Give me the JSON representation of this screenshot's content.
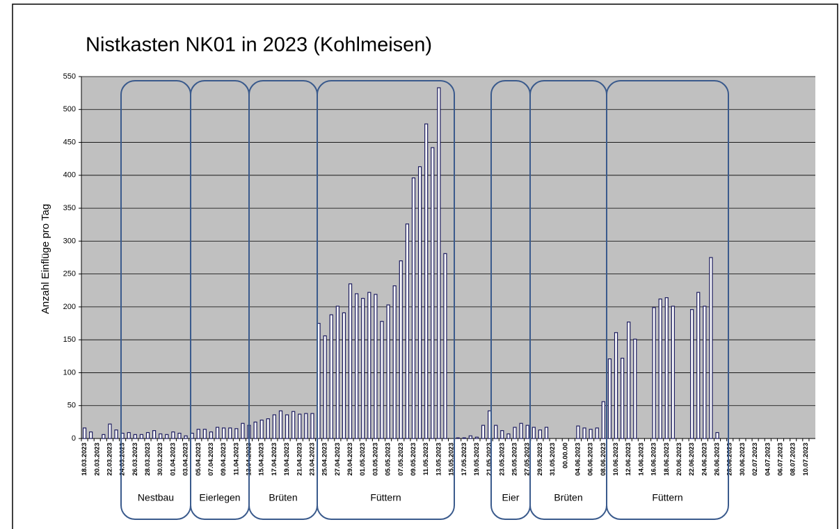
{
  "chart_data": {
    "type": "bar",
    "title": "Nistkasten NK01 in  2023 (Kohlmeisen)",
    "y_label": "Anzahl Einflüge pro Tag",
    "annotations": [
      "Nestbau",
      "Eierlegen",
      "Brüten",
      "Füttern",
      "Eier",
      "Brüten",
      "Füttern"
    ],
    "categories": [
      "18.03.2023",
      null,
      "20.03.2023",
      null,
      "22.03.2023",
      null,
      "24.03.2023",
      null,
      "26.03.2023",
      null,
      "28.03.2023",
      null,
      "30.03.2023",
      null,
      "01.04.2023",
      null,
      "03.04.2023",
      null,
      "05.04.2023",
      null,
      "07.04.2023",
      null,
      "09.04.2023",
      null,
      "11.04.2023",
      null,
      "13.04.2023",
      null,
      "15.04.2023",
      null,
      "17.04.2023",
      null,
      "19.04.2023",
      null,
      "21.04.2023",
      null,
      "23.04.2023",
      null,
      "25.04.2023",
      null,
      "27.04.2023",
      null,
      "29.04.2023",
      null,
      "01.05.2023",
      null,
      "03.05.2023",
      null,
      "05.05.2023",
      null,
      "07.05.2023",
      null,
      "09.05.2023",
      null,
      "11.05.2023",
      null,
      "13.05.2023",
      null,
      "15.05.2023",
      null,
      "17.05.2023",
      null,
      "19.05.2023",
      null,
      "21.05.2023",
      null,
      "23.05.2023",
      null,
      "25.05.2023",
      null,
      "27.05.2023",
      null,
      "29.05.2023",
      null,
      "31.05.2023",
      null,
      "00.00.00",
      null,
      "04.06.2023",
      null,
      "06.06.2023",
      null,
      "08.06.2023",
      null,
      "10.06.2023",
      null,
      "12.06.2023",
      null,
      "14.06.2023",
      null,
      "16.06.2023",
      null,
      "18.06.2023",
      null,
      "20.06.2023",
      null,
      "22.06.2023",
      null,
      "24.06.2023",
      null,
      "26.06.2023",
      null,
      "28.06.2023",
      null,
      "30.06.2023",
      null,
      "02.07.2023",
      null,
      "04.07.2023",
      null,
      "06.07.2023",
      null,
      "08.07.2023",
      null,
      "10.07.2023",
      null
    ],
    "values": [
      16,
      10,
      0,
      6,
      22,
      13,
      8,
      9,
      6,
      6,
      9,
      12,
      7,
      6,
      10,
      8,
      4,
      8,
      14,
      14,
      10,
      17,
      16,
      16,
      15,
      23,
      20,
      25,
      28,
      30,
      36,
      42,
      36,
      41,
      37,
      38,
      38,
      175,
      156,
      188,
      201,
      191,
      235,
      220,
      213,
      222,
      219,
      178,
      203,
      232,
      270,
      326,
      396,
      413,
      478,
      442,
      533,
      281,
      0,
      1,
      1,
      4,
      2,
      20,
      42,
      20,
      12,
      7,
      17,
      23,
      20,
      17,
      13,
      17,
      0,
      0,
      0,
      0,
      19,
      16,
      14,
      16,
      56,
      121,
      161,
      122,
      177,
      151,
      0,
      0,
      199,
      212,
      214,
      201,
      0,
      0,
      196,
      222,
      201,
      275,
      9,
      0,
      0,
      0,
      0,
      0,
      0,
      0,
      0,
      0,
      0,
      0,
      0,
      0,
      0,
      0
    ],
    "color": "#ffffff",
    "ylim": [
      0,
      550
    ],
    "yticks": [
      0,
      50,
      100,
      150,
      200,
      250,
      300,
      350,
      400,
      450,
      500,
      550
    ],
    "grid": true
  }
}
